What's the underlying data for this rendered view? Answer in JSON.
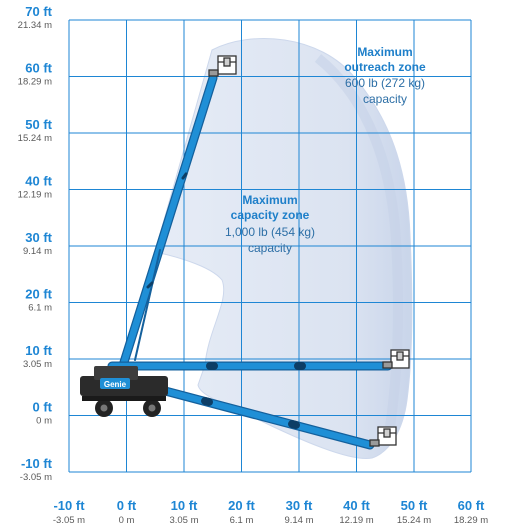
{
  "y_axis": {
    "ticks": [
      {
        "ft": "70 ft",
        "m": "21.34 m"
      },
      {
        "ft": "60 ft",
        "m": "18.29 m"
      },
      {
        "ft": "50 ft",
        "m": "15.24 m"
      },
      {
        "ft": "40 ft",
        "m": "12.19 m"
      },
      {
        "ft": "30 ft",
        "m": "9.14 m"
      },
      {
        "ft": "20 ft",
        "m": "6.1 m"
      },
      {
        "ft": "10 ft",
        "m": "3.05 m"
      },
      {
        "ft": "0 ft",
        "m": "0 m"
      },
      {
        "ft": "-10 ft",
        "m": "-3.05 m"
      }
    ]
  },
  "x_axis": {
    "ticks": [
      {
        "ft": "-10 ft",
        "m": "-3.05 m"
      },
      {
        "ft": "0 ft",
        "m": "0 m"
      },
      {
        "ft": "10 ft",
        "m": "3.05 m"
      },
      {
        "ft": "20 ft",
        "m": "6.1 m"
      },
      {
        "ft": "30 ft",
        "m": "9.14 m"
      },
      {
        "ft": "40 ft",
        "m": "12.19 m"
      },
      {
        "ft": "50 ft",
        "m": "15.24 m"
      },
      {
        "ft": "60 ft",
        "m": "18.29 m"
      }
    ]
  },
  "zones": {
    "max_capacity": {
      "title_line1": "Maximum",
      "title_line2": "capacity zone",
      "load": "1,000 lb (454 kg)",
      "caption": "capacity"
    },
    "max_outreach": {
      "title_line1": "Maximum",
      "title_line2": "outreach zone",
      "load": "600 lb (272 kg)",
      "caption": "capacity"
    }
  },
  "machine": {
    "brand": "Genie"
  },
  "colors": {
    "grid": "#1e86d4",
    "boom": "#1f8fd6",
    "zone_fill": "#dfe7f3",
    "zone_edge": "#c7d4ea",
    "chassis": "#2b2b2b"
  }
}
